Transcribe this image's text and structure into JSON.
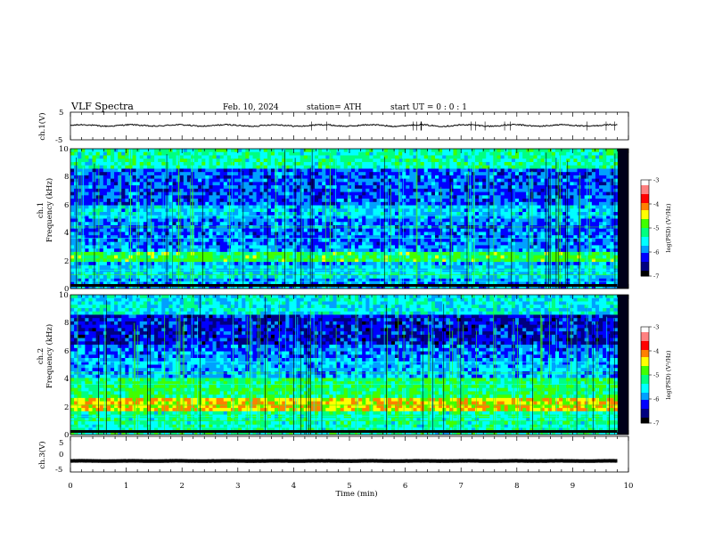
{
  "header": {
    "title": "VLF  Spectra",
    "date": "Feb. 10, 2024",
    "station": "station= ATH",
    "start": "start  UT  =   0 : 0  : 1"
  },
  "chart_data": [
    {
      "type": "line",
      "name": "ch1-waveform",
      "ylabel": "ch.1(V)",
      "ylim": [
        -5,
        5
      ],
      "yticks": [
        "5",
        "-5"
      ],
      "xlim": [
        0,
        10
      ],
      "x_range": [
        0,
        9.8
      ],
      "y_level": 0.2,
      "y_noise": 0.45
    },
    {
      "type": "heatmap",
      "name": "ch1-spectrogram",
      "ylabel": "ch.1\nFrequency  (kHz)",
      "ylim": [
        0,
        10
      ],
      "yticks": [
        "0",
        "2",
        "4",
        "6",
        "8",
        "10"
      ],
      "xlim": [
        0,
        10
      ],
      "x_range": [
        0,
        9.8
      ],
      "colorbar": {
        "label": "log(PSD) (V²/Hz)",
        "range": [
          -7,
          -3
        ],
        "ticks": [
          "-3",
          "-4",
          "-5",
          "-6",
          "-7"
        ]
      }
    },
    {
      "type": "heatmap",
      "name": "ch2-spectrogram",
      "ylabel": "ch.2\nFrequency  (kHz)",
      "ylim": [
        0,
        10
      ],
      "yticks": [
        "0",
        "2",
        "4",
        "6",
        "8",
        "10"
      ],
      "xlim": [
        0,
        10
      ],
      "x_range": [
        0,
        9.8
      ],
      "colorbar": {
        "label": "log(PSD) (V²/Hz)",
        "range": [
          -7,
          -3
        ],
        "ticks": [
          "-3",
          "-4",
          "-5",
          "-6",
          "-7"
        ]
      }
    },
    {
      "type": "line",
      "name": "ch3-waveform",
      "ylabel": "ch.3(V)",
      "ylim": [
        -5,
        5
      ],
      "yticks": [
        "5",
        "0",
        "-5"
      ],
      "xlim": [
        0,
        10
      ],
      "x_range": [
        0,
        9.8
      ],
      "y_level": -1.9,
      "y_noise": 0.05,
      "xlabel": "Time  (min)",
      "xticks": [
        "0",
        "1",
        "2",
        "3",
        "4",
        "5",
        "6",
        "7",
        "8",
        "9",
        "10"
      ]
    }
  ],
  "colors": {
    "scale": [
      "#000000",
      "#000080",
      "#0000ff",
      "#00a0ff",
      "#00ffff",
      "#00ff80",
      "#40ff00",
      "#ffff00",
      "#ff8000",
      "#ff0000",
      "#ff8080",
      "#ffffff"
    ]
  }
}
